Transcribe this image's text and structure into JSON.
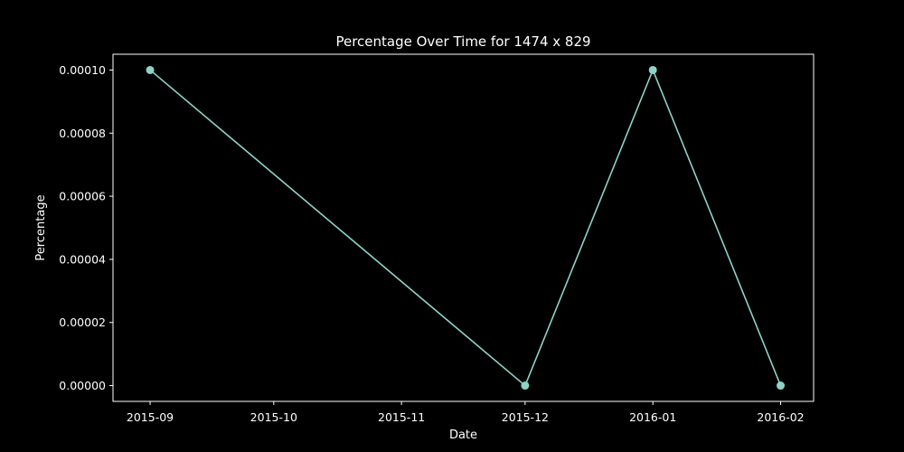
{
  "chart_data": {
    "type": "line",
    "title": "Percentage Over Time for 1474 x 829",
    "xlabel": "Date",
    "ylabel": "Percentage",
    "x_ticks": [
      "2015-09",
      "2015-10",
      "2015-11",
      "2015-12",
      "2016-01",
      "2016-02"
    ],
    "y_ticks": [
      "0.00000",
      "0.00002",
      "0.00004",
      "0.00006",
      "0.00008",
      "0.00010"
    ],
    "ylim": [
      -5e-06,
      0.000105
    ],
    "xlim": [
      "2015-08-23",
      "2016-02-09"
    ],
    "grid": false,
    "colors": {
      "background": "#000000",
      "series": "#8dd3c7",
      "axes": "#ffffff"
    },
    "series": [
      {
        "points": [
          {
            "x": "2015-09-01",
            "y": 0.0001
          },
          {
            "x": "2015-12-01",
            "y": 0.0
          },
          {
            "x": "2016-01-01",
            "y": 0.0001
          },
          {
            "x": "2016-02-01",
            "y": 0.0
          }
        ]
      }
    ]
  }
}
